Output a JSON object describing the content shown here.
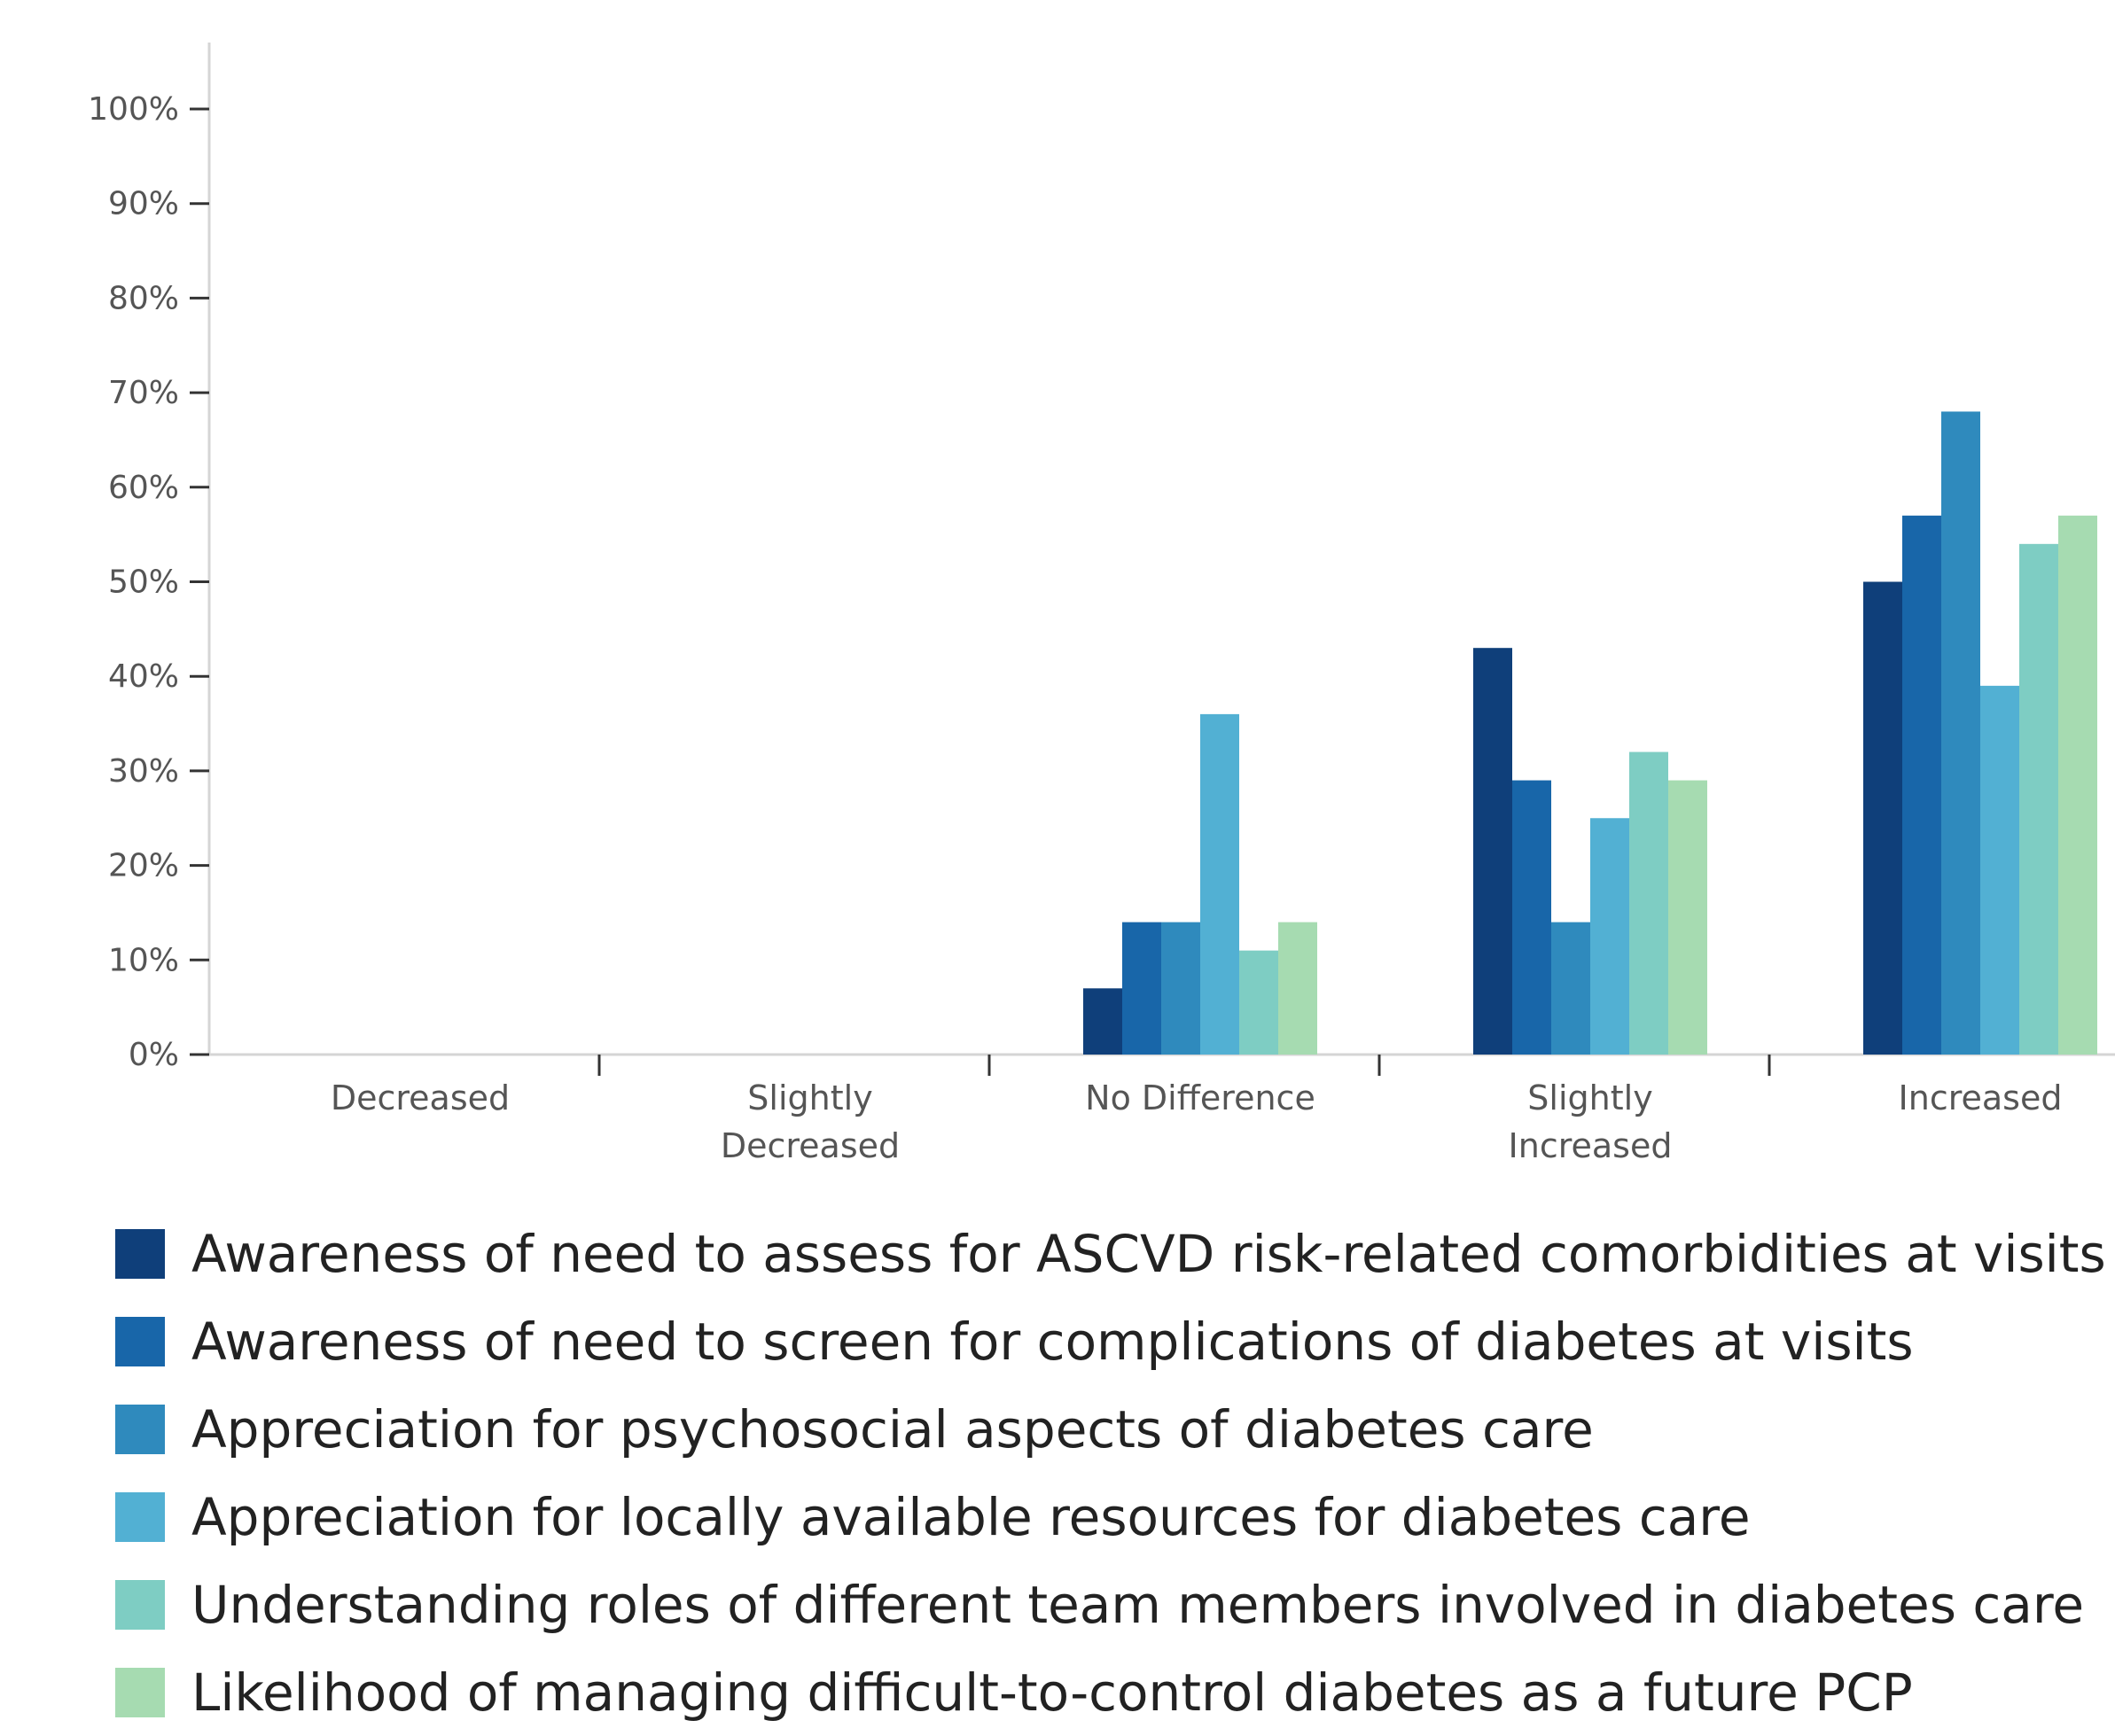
{
  "chart_data": {
    "type": "bar",
    "categories": [
      [
        "Decreased"
      ],
      [
        "Slightly",
        "Decreased"
      ],
      [
        "No Difference"
      ],
      [
        "Slightly",
        "Increased"
      ],
      [
        "Increased"
      ]
    ],
    "yticks": [
      "0%",
      "10%",
      "20%",
      "30%",
      "40%",
      "50%",
      "60%",
      "70%",
      "80%",
      "90%",
      "100%"
    ],
    "ylim": [
      0,
      100
    ],
    "grid": false,
    "legend_position": "bottom",
    "series": [
      {
        "name": "Awareness of need to assess for ASCVD risk-related comorbidities at visits",
        "color": "#0f3f7a",
        "values": [
          0,
          0,
          7,
          43,
          50
        ]
      },
      {
        "name": "Awareness of need to screen for complications of diabetes at visits",
        "color": "#1866a9",
        "values": [
          0,
          0,
          14,
          29,
          57
        ]
      },
      {
        "name": "Appreciation for psychosocial aspects of diabetes care",
        "color": "#2f8abd",
        "values": [
          0,
          0,
          14,
          14,
          68
        ]
      },
      {
        "name": "Appreciation for locally available resources for diabetes care",
        "color": "#52b0d3",
        "values": [
          0,
          0,
          36,
          25,
          39
        ]
      },
      {
        "name": "Understanding roles of different team members involved in diabetes care",
        "color": "#7ecdc3",
        "values": [
          0,
          0,
          11,
          32,
          54
        ]
      },
      {
        "name": "Likelihood of managing difficult-to-control diabetes as a future PCP",
        "color": "#a6dbb1",
        "values": [
          0,
          0,
          14,
          29,
          57
        ]
      }
    ]
  }
}
